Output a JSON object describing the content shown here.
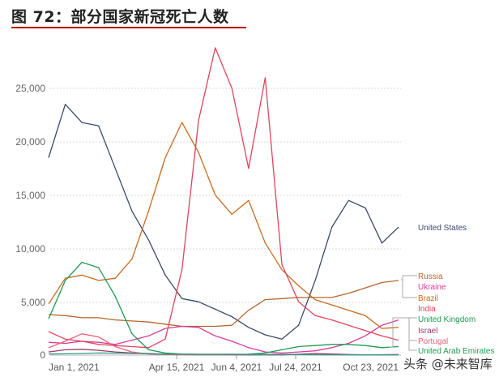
{
  "header": {
    "title": "图 72：部分国家新冠死亡人数"
  },
  "watermark": "头条 @未来智库",
  "chart_data": {
    "type": "line",
    "title": "图 72：部分国家新冠死亡人数",
    "xlabel": "",
    "ylabel": "",
    "ylim": [
      0,
      29000
    ],
    "grid": "horizontal dashed",
    "legend_position": "right, labels at line ends",
    "y_ticks": [
      "0",
      "5,000",
      "10,000",
      "15,000",
      "20,000",
      "25,000"
    ],
    "x_ticks": [
      "Jan 1, 2021",
      "Apr 15, 2021",
      "Jun 4, 2021",
      "Jul 24, 2021",
      "Oct 23, 2021"
    ],
    "x": [
      "Dec 15, 2020",
      "Jan 1, 2021",
      "Jan 15",
      "Feb 1",
      "Feb 15",
      "Mar 1",
      "Mar 15",
      "Apr 1",
      "Apr 15, 2021",
      "May 1",
      "May 15",
      "Jun 4, 2021",
      "Jun 20",
      "Jul 5",
      "Jul 24, 2021",
      "Aug 10",
      "Aug 25",
      "Sep 10",
      "Sep 25",
      "Oct 10",
      "Oct 23, 2021",
      "Nov 1"
    ],
    "series": [
      {
        "name": "United States",
        "color": "#3b4a6b",
        "values": [
          18500,
          23500,
          21800,
          21500,
          17500,
          13500,
          10800,
          7500,
          5300,
          5000,
          4300,
          3600,
          2600,
          1900,
          1500,
          2800,
          7000,
          12000,
          14500,
          13800,
          10500,
          12000
        ]
      },
      {
        "name": "Russia",
        "color": "#b5652e",
        "values": [
          3800,
          3700,
          3500,
          3500,
          3300,
          3200,
          3100,
          2900,
          2700,
          2700,
          2700,
          2800,
          4200,
          5200,
          5300,
          5400,
          5400,
          5400,
          5800,
          6300,
          6800,
          7000
        ]
      },
      {
        "name": "Ukraine",
        "color": "#d63a9a",
        "values": [
          1200,
          1100,
          1300,
          1200,
          1000,
          1400,
          1800,
          2500,
          2700,
          2600,
          1800,
          1300,
          700,
          300,
          200,
          300,
          400,
          700,
          1100,
          1800,
          2800,
          3300
        ]
      },
      {
        "name": "Brazil",
        "color": "#cc6a1f",
        "values": [
          4800,
          7200,
          7500,
          7000,
          7200,
          9000,
          13500,
          18500,
          21800,
          19000,
          15000,
          13200,
          14500,
          10500,
          8000,
          6500,
          5200,
          4700,
          4200,
          3700,
          2500,
          2600
        ]
      },
      {
        "name": "India",
        "color": "#e0445c",
        "values": [
          2200,
          1500,
          1300,
          1000,
          900,
          800,
          700,
          1500,
          8000,
          22000,
          28800,
          25000,
          17500,
          26000,
          8500,
          5000,
          3700,
          3300,
          2800,
          2300,
          1800,
          1400
        ]
      },
      {
        "name": "United Kingdom",
        "color": "#1f9a52",
        "values": [
          3400,
          7000,
          8700,
          8200,
          5500,
          2000,
          500,
          200,
          100,
          80,
          80,
          80,
          90,
          200,
          500,
          800,
          900,
          1000,
          1000,
          900,
          700,
          800
        ]
      },
      {
        "name": "Israel",
        "color": "#9b3a6a",
        "values": [
          300,
          500,
          550,
          450,
          300,
          200,
          150,
          100,
          60,
          40,
          30,
          20,
          20,
          20,
          20,
          80,
          150,
          100,
          50,
          30,
          30,
          20
        ]
      },
      {
        "name": "Portugal",
        "color": "#e8607a",
        "values": [
          700,
          1300,
          2000,
          1700,
          800,
          300,
          100,
          50,
          30,
          20,
          20,
          20,
          40,
          60,
          80,
          60,
          40,
          30,
          30,
          30,
          40,
          60
        ]
      },
      {
        "name": "United Arab Emirates",
        "color": "#2e9e8a",
        "values": [
          100,
          120,
          150,
          200,
          180,
          150,
          120,
          100,
          80,
          60,
          60,
          60,
          60,
          60,
          60,
          50,
          40,
          30,
          20,
          20,
          20,
          20
        ]
      }
    ]
  },
  "legend": {
    "united_states": "United States",
    "russia": "Russia",
    "ukraine": "Ukraine",
    "brazil": "Brazil",
    "india": "India",
    "united_kingdom": "United Kingdom",
    "israel": "Israel",
    "portugal": "Portugal",
    "uae": "United Arab Emirates"
  },
  "axis": {
    "y": [
      "0",
      "5,000",
      "10,000",
      "15,000",
      "20,000",
      "25,000"
    ],
    "x": [
      "Jan 1, 2021",
      "Apr 15, 2021",
      "Jun 4, 2021",
      "Jul 24, 2021",
      "Oct 23, 2021"
    ]
  }
}
